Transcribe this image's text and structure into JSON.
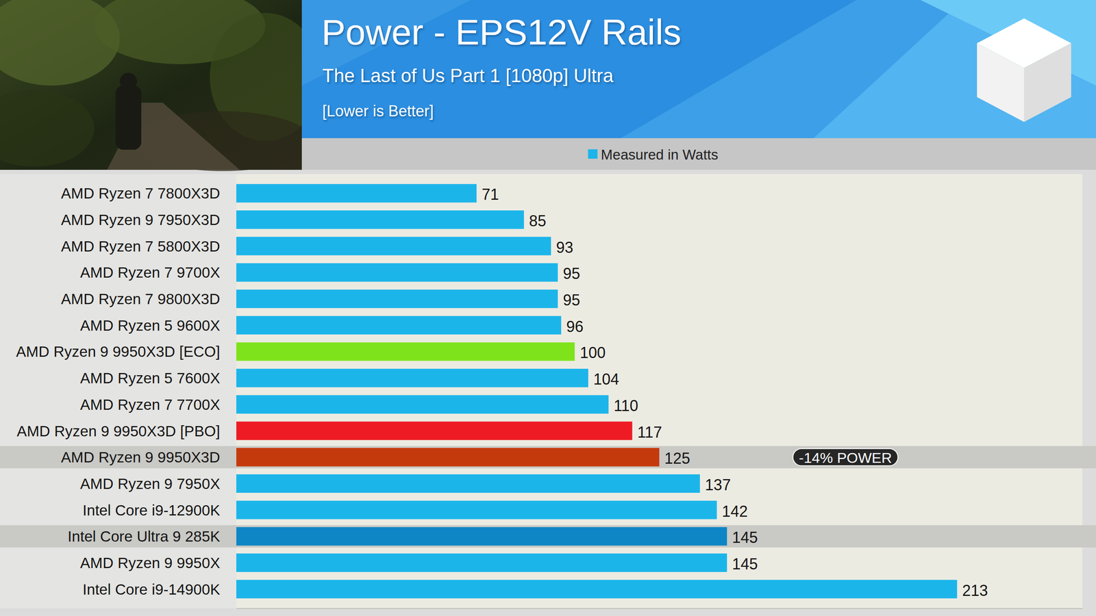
{
  "chart_data": {
    "type": "bar",
    "orientation": "horizontal",
    "title": "Power - EPS12V Rails",
    "subtitle": "The Last of Us Part 1 [1080p] Ultra",
    "annotations": [
      {
        "text": "[Lower is Better]"
      },
      {
        "text": "-14% POWER",
        "category": "AMD Ryzen 9 9950X3D"
      }
    ],
    "categories": [
      "AMD Ryzen 7 7800X3D",
      "AMD Ryzen 9 7950X3D",
      "AMD Ryzen 7 5800X3D",
      "AMD Ryzen 7 9700X",
      "AMD Ryzen 7 9800X3D",
      "AMD Ryzen 5 9600X",
      "AMD Ryzen 9 9950X3D [ECO]",
      "AMD Ryzen 5 7600X",
      "AMD Ryzen 7 7700X",
      "AMD Ryzen 9 9950X3D [PBO]",
      "AMD Ryzen 9 9950X3D",
      "AMD Ryzen 9 7950X",
      "Intel Core i9-12900K",
      "Intel Core Ultra 9 285K",
      "AMD Ryzen 9 9950X",
      "Intel Core i9-14900K"
    ],
    "series": [
      {
        "name": "Measured in Watts",
        "color": "#1cb5ea",
        "colors": [
          "#1cb5ea",
          "#1cb5ea",
          "#1cb5ea",
          "#1cb5ea",
          "#1cb5ea",
          "#1cb5ea",
          "#7fe31c",
          "#1cb5ea",
          "#1cb5ea",
          "#ee1b24",
          "#c53a0c",
          "#1cb5ea",
          "#1cb5ea",
          "#0e86c6",
          "#1cb5ea",
          "#1cb5ea"
        ],
        "values": [
          71,
          85,
          93,
          95,
          95,
          96,
          100,
          104,
          110,
          117,
          125,
          137,
          142,
          145,
          145,
          213
        ]
      }
    ],
    "xlim": [
      0,
      250
    ],
    "data_labels": true,
    "tick_labels": false,
    "grid": false,
    "legend": "top"
  }
}
